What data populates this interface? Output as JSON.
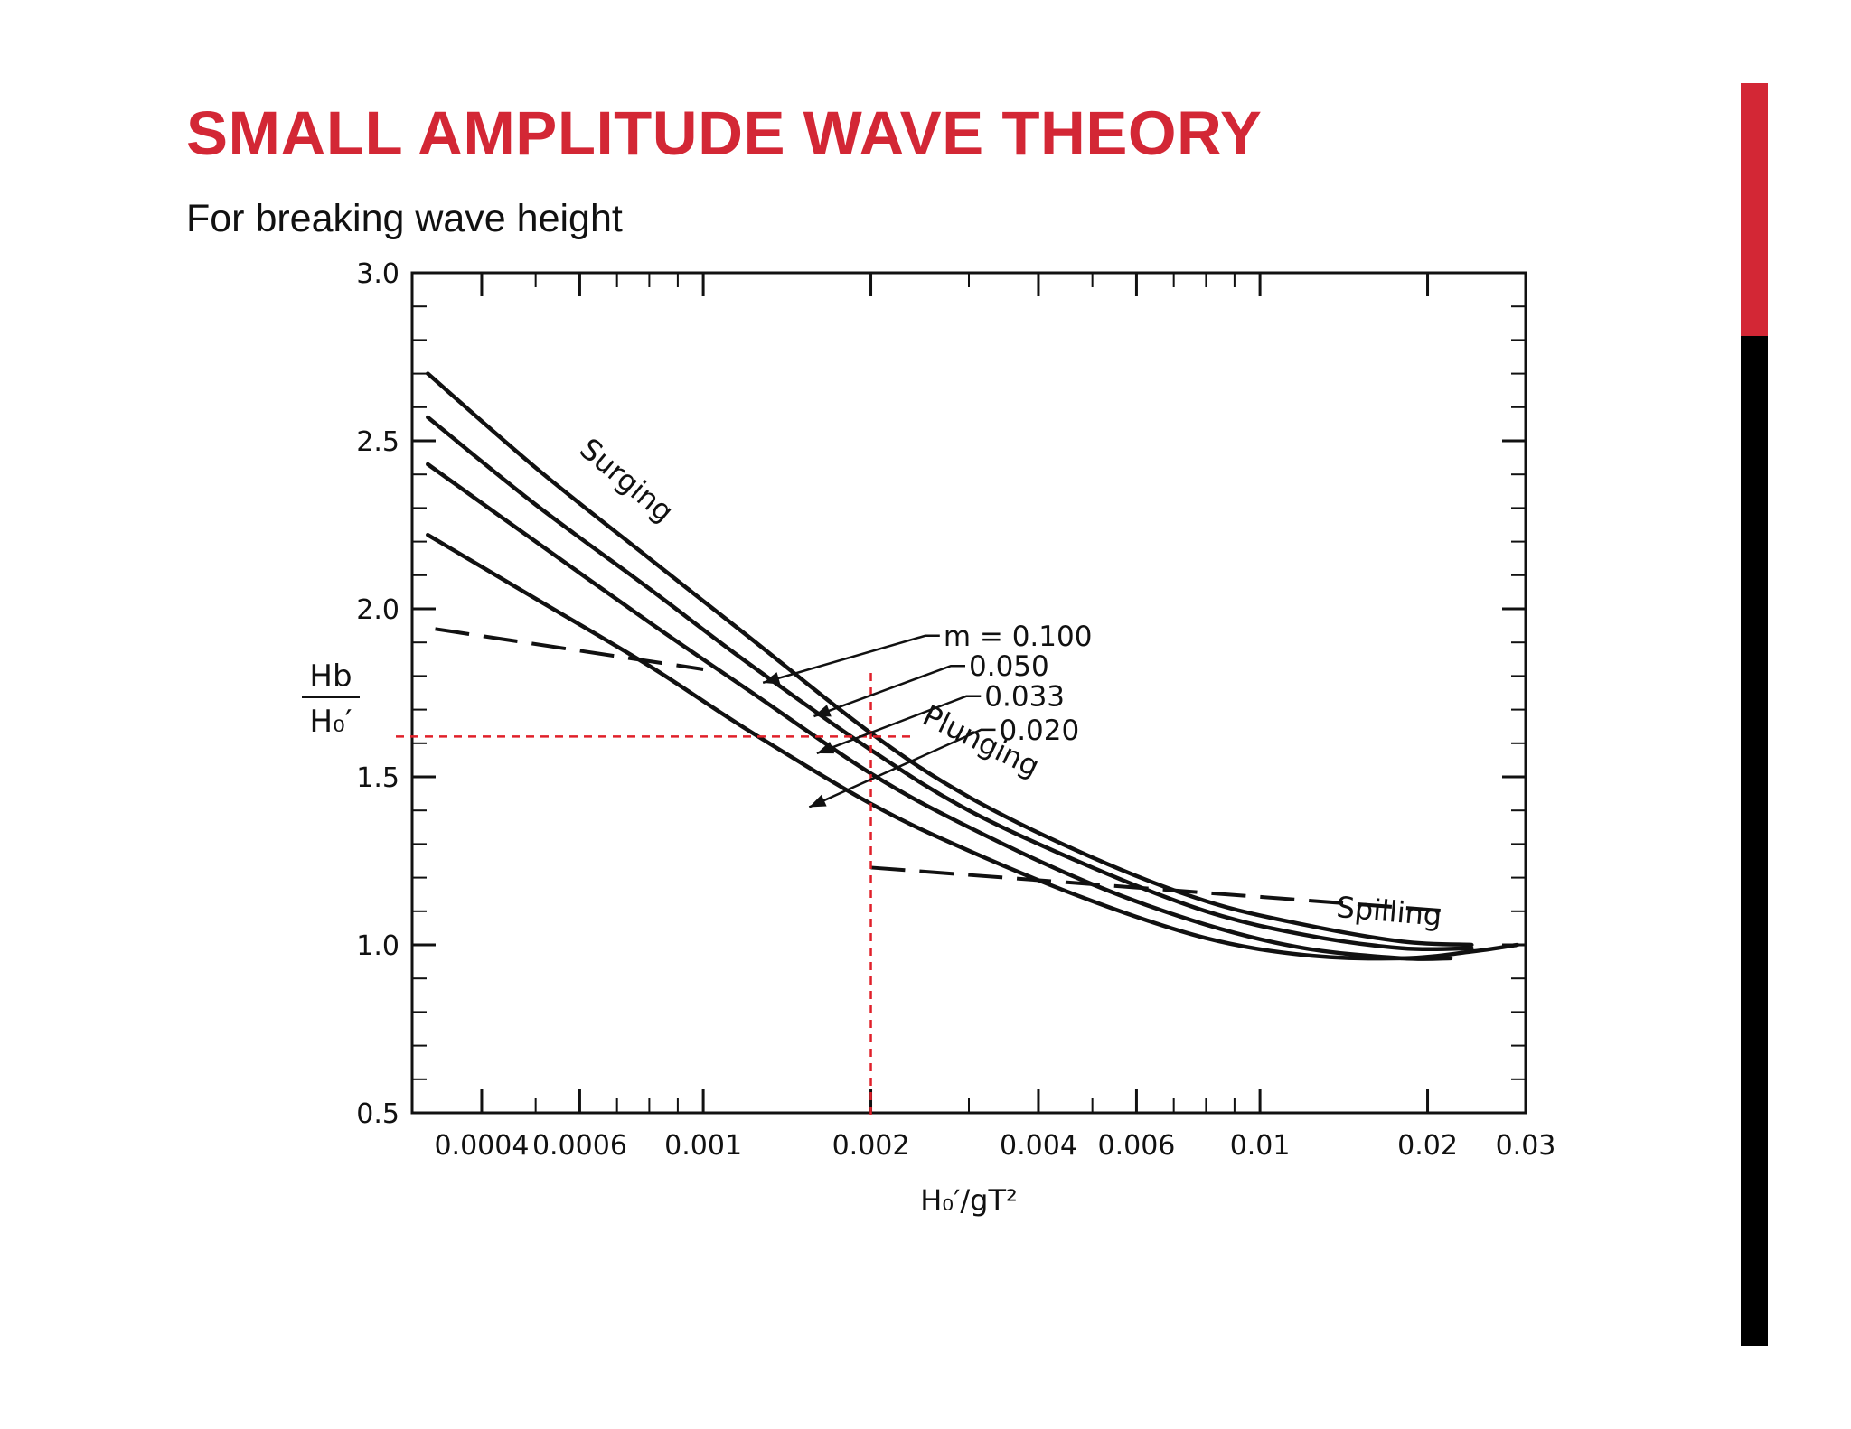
{
  "slide": {
    "title": "SMALL AMPLITUDE WAVE THEORY",
    "subtitle": "For breaking wave height"
  },
  "colors": {
    "accent": "#d32735",
    "bar_dark": "#000000",
    "guide": "#e0202a"
  },
  "chart_data": {
    "type": "line",
    "xscale": "log",
    "xlim": [
      0.0003,
      0.03
    ],
    "ylim": [
      0.5,
      3.0
    ],
    "grid": false,
    "ylabel_num": "Hb",
    "ylabel_den": "H₀′",
    "xlabel": "H₀′/gT²",
    "xticks": [
      {
        "value": 0.0004,
        "label": "0.0004"
      },
      {
        "value": 0.0006,
        "label": "0.0006"
      },
      {
        "value": 0.001,
        "label": "0.001"
      },
      {
        "value": 0.002,
        "label": "0.002"
      },
      {
        "value": 0.004,
        "label": "0.004"
      },
      {
        "value": 0.006,
        "label": "0.006"
      },
      {
        "value": 0.01,
        "label": "0.01"
      },
      {
        "value": 0.02,
        "label": "0.02"
      },
      {
        "value": 0.03,
        "label": "0.03"
      }
    ],
    "yticks": [
      {
        "value": 0.5,
        "label": "0.5"
      },
      {
        "value": 1.0,
        "label": "1.0"
      },
      {
        "value": 1.5,
        "label": "1.5"
      },
      {
        "value": 2.0,
        "label": "2.0"
      },
      {
        "value": 2.5,
        "label": "2.5"
      },
      {
        "value": 3.0,
        "label": "3.0"
      }
    ],
    "series": [
      {
        "name": "m = 0.100",
        "x": [
          0.00032,
          0.0005,
          0.0008,
          0.0012,
          0.002,
          0.003,
          0.005,
          0.008,
          0.012,
          0.018,
          0.024
        ],
        "y": [
          2.7,
          2.42,
          2.15,
          1.92,
          1.63,
          1.44,
          1.26,
          1.13,
          1.06,
          1.01,
          1.0
        ]
      },
      {
        "name": "0.050",
        "x": [
          0.00032,
          0.0005,
          0.0008,
          0.0012,
          0.002,
          0.003,
          0.005,
          0.008,
          0.012,
          0.018,
          0.024
        ],
        "y": [
          2.57,
          2.31,
          2.06,
          1.84,
          1.58,
          1.4,
          1.23,
          1.1,
          1.03,
          0.99,
          0.99
        ]
      },
      {
        "name": "0.033",
        "x": [
          0.00032,
          0.0005,
          0.0008,
          0.0012,
          0.002,
          0.003,
          0.005,
          0.008,
          0.012,
          0.018,
          0.022
        ],
        "y": [
          2.43,
          2.2,
          1.96,
          1.76,
          1.51,
          1.35,
          1.18,
          1.06,
          0.99,
          0.96,
          0.96
        ]
      },
      {
        "name": "0.020",
        "x": [
          0.00032,
          0.0005,
          0.0008,
          0.0012,
          0.002,
          0.003,
          0.005,
          0.008,
          0.012,
          0.018,
          0.024,
          0.029
        ],
        "y": [
          2.22,
          2.03,
          1.83,
          1.64,
          1.42,
          1.28,
          1.13,
          1.02,
          0.97,
          0.96,
          0.98,
          1.0
        ]
      }
    ],
    "boundaries": [
      {
        "x": [
          0.00033,
          0.001
        ],
        "y": [
          1.94,
          1.82
        ]
      },
      {
        "x": [
          0.002,
          0.022
        ],
        "y": [
          1.23,
          1.1
        ]
      }
    ],
    "annotations": [
      {
        "text": "Surging",
        "x": 0.00071,
        "y": 2.36,
        "angle": 40
      },
      {
        "text": "Plunging",
        "x": 0.0031,
        "y": 1.58,
        "angle": 26
      },
      {
        "text": "Spilling",
        "x": 0.017,
        "y": 1.07,
        "angle": 5
      }
    ],
    "m_labels": [
      {
        "text": "m = 0.100",
        "x": 0.0027,
        "y": 1.92,
        "target_x": 0.00128,
        "target_y": 1.78
      },
      {
        "text": "0.050",
        "x": 0.003,
        "y": 1.83,
        "target_x": 0.00158,
        "target_y": 1.68
      },
      {
        "text": "0.033",
        "x": 0.0032,
        "y": 1.74,
        "target_x": 0.0016,
        "target_y": 1.57
      },
      {
        "text": "0.020",
        "x": 0.0034,
        "y": 1.64,
        "target_x": 0.00155,
        "target_y": 1.41
      }
    ],
    "guides": {
      "x": 0.002,
      "y": 1.62
    }
  }
}
